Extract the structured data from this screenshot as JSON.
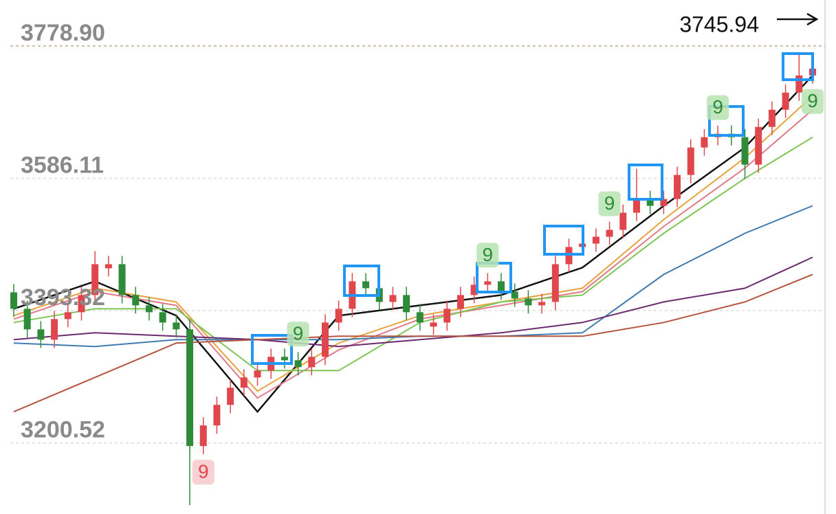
{
  "chart_data": {
    "type": "candlestick",
    "last_price": "3745.94",
    "ylim": [
      3097,
      3845.9
    ],
    "yticks": [
      {
        "value": 3778.9,
        "label": "3778.90"
      },
      3586.11,
      3393.32,
      3200.52
    ],
    "up_color": "#e0474c",
    "down_color": "#2e8b3a",
    "open": [
      3420,
      3396,
      3366,
      3351,
      3381,
      3391,
      3416,
      3455,
      3461,
      3416,
      3401,
      3391,
      3376,
      3366,
      3196,
      3226,
      3256,
      3281,
      3296,
      3306,
      3326,
      3321,
      3311,
      3326,
      3376,
      3396,
      3436,
      3426,
      3406,
      3416,
      3391,
      3370,
      3376,
      3396,
      3416,
      3431,
      3436,
      3421,
      3411,
      3401,
      3406,
      3461,
      3486,
      3491,
      3501,
      3511,
      3536,
      3556,
      3546,
      3556,
      3591,
      3631,
      3646,
      3651,
      3646,
      3606,
      3661,
      3686,
      3711,
      3736
    ],
    "high": [
      3432,
      3408,
      3378,
      3393,
      3403,
      3428,
      3480,
      3473,
      3473,
      3428,
      3413,
      3403,
      3388,
      3380,
      3238,
      3268,
      3293,
      3308,
      3318,
      3338,
      3338,
      3333,
      3338,
      3388,
      3408,
      3448,
      3448,
      3438,
      3428,
      3428,
      3403,
      3388,
      3408,
      3428,
      3443,
      3448,
      3448,
      3433,
      3423,
      3418,
      3473,
      3498,
      3503,
      3513,
      3523,
      3548,
      3600,
      3568,
      3568,
      3603,
      3643,
      3658,
      3663,
      3663,
      3658,
      3673,
      3698,
      3723,
      3770,
      3758
    ],
    "low": [
      3384,
      3354,
      3339,
      3339,
      3369,
      3379,
      3404,
      3443,
      3404,
      3389,
      3379,
      3364,
      3354,
      3110,
      3184,
      3214,
      3244,
      3269,
      3284,
      3294,
      3309,
      3299,
      3299,
      3314,
      3364,
      3384,
      3414,
      3394,
      3394,
      3379,
      3364,
      3358,
      3364,
      3384,
      3404,
      3419,
      3409,
      3399,
      3389,
      3389,
      3394,
      3449,
      3474,
      3479,
      3489,
      3499,
      3524,
      3534,
      3534,
      3544,
      3579,
      3619,
      3634,
      3634,
      3585,
      3594,
      3649,
      3674,
      3699,
      3724
    ],
    "close": [
      3396,
      3366,
      3351,
      3381,
      3391,
      3416,
      3461,
      3461,
      3416,
      3401,
      3391,
      3376,
      3366,
      3196,
      3226,
      3256,
      3281,
      3296,
      3306,
      3326,
      3321,
      3311,
      3326,
      3376,
      3396,
      3436,
      3426,
      3406,
      3416,
      3391,
      3376,
      3376,
      3396,
      3416,
      3431,
      3436,
      3421,
      3411,
      3401,
      3406,
      3461,
      3486,
      3491,
      3501,
      3511,
      3536,
      3556,
      3546,
      3556,
      3591,
      3631,
      3646,
      3651,
      3646,
      3606,
      3661,
      3686,
      3711,
      3736,
      3745.94
    ],
    "lines": [
      {
        "color": "#111111",
        "x": [
          0,
          6,
          12,
          18,
          24,
          30,
          36,
          42,
          48,
          54,
          59
        ],
        "values": [
          3396,
          3436,
          3386,
          3246,
          3386,
          3401,
          3416,
          3456,
          3546,
          3631,
          3736
        ]
      },
      {
        "color": "#e8a23c",
        "x": [
          0,
          6,
          12,
          18,
          24,
          30,
          36,
          42,
          48,
          54,
          59
        ],
        "values": [
          3386,
          3426,
          3406,
          3276,
          3346,
          3386,
          3406,
          3426,
          3526,
          3616,
          3706
        ]
      },
      {
        "color": "#e07a86",
        "x": [
          0,
          6,
          12,
          18,
          24,
          30,
          36,
          42,
          48,
          54,
          59
        ],
        "values": [
          3381,
          3421,
          3401,
          3266,
          3336,
          3381,
          3401,
          3421,
          3516,
          3601,
          3686
        ]
      },
      {
        "color": "#7cc655",
        "x": [
          0,
          6,
          12,
          18,
          24,
          30,
          36,
          42,
          48,
          54,
          59
        ],
        "values": [
          3376,
          3396,
          3396,
          3306,
          3306,
          3376,
          3406,
          3416,
          3506,
          3586,
          3646
        ]
      },
      {
        "color": "#3f7ab0",
        "x": [
          0,
          6,
          12,
          18,
          24,
          30,
          36,
          42,
          48,
          54,
          59
        ],
        "values": [
          3346,
          3341,
          3351,
          3351,
          3351,
          3356,
          3356,
          3361,
          3446,
          3506,
          3546
        ]
      },
      {
        "color": "#6b2a6e",
        "x": [
          0,
          6,
          12,
          18,
          24,
          30,
          36,
          42,
          48,
          54,
          59
        ],
        "values": [
          3351,
          3361,
          3356,
          3351,
          3341,
          3351,
          3361,
          3376,
          3406,
          3426,
          3471
        ]
      },
      {
        "color": "#b5553e",
        "x": [
          0,
          6,
          12,
          18,
          24,
          30,
          36,
          42,
          48,
          54,
          59
        ],
        "values": [
          3246,
          3296,
          3346,
          3351,
          3356,
          3356,
          3356,
          3356,
          3376,
          3406,
          3446
        ]
      }
    ],
    "annotations": [
      {
        "text": "9",
        "candle": 14,
        "kind": "low",
        "color": "#e0474c",
        "bg": "#f6c9cb"
      },
      {
        "text": "9",
        "candle": 21,
        "kind": "high",
        "color": "#2e8b3a",
        "bg": "#b9e3b0"
      },
      {
        "text": "9",
        "candle": 35,
        "kind": "high",
        "color": "#2e8b3a",
        "bg": "#b9e3b0"
      },
      {
        "text": "9",
        "candle": 44,
        "kind": "high",
        "color": "#2e8b3a",
        "bg": "#b9e3b0"
      },
      {
        "text": "9",
        "candle": 52,
        "kind": "high",
        "color": "#2e8b3a",
        "bg": "#b9e3b0"
      },
      {
        "text": "9",
        "candle": 59,
        "kind": "low",
        "color": "#2e8b3a",
        "bg": "#b9e3b0"
      }
    ]
  }
}
